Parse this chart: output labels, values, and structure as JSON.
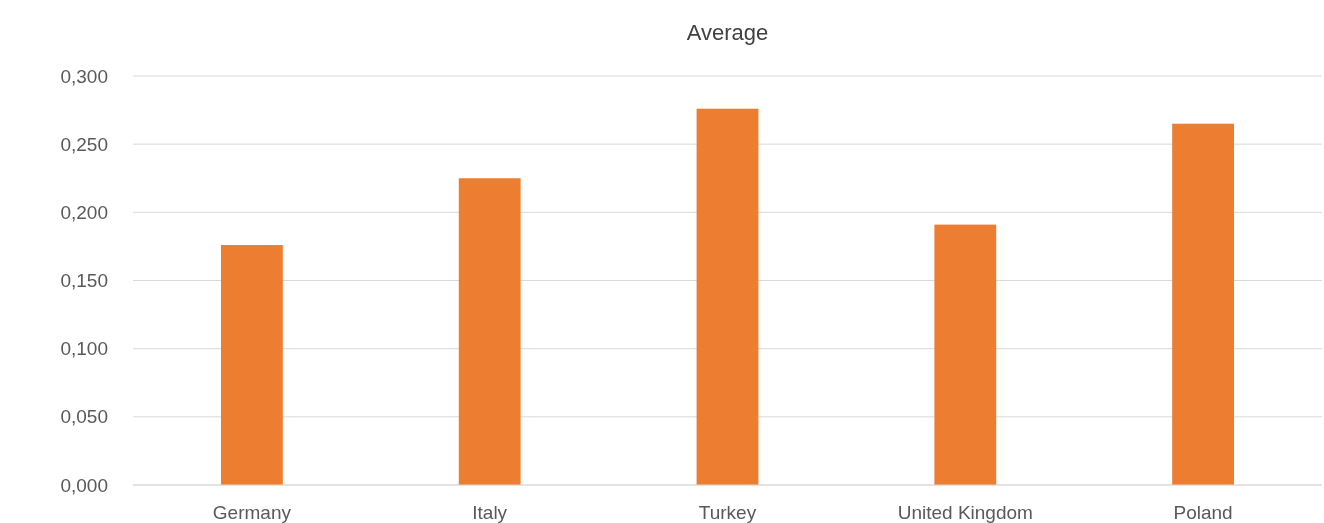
{
  "chart_data": {
    "type": "bar",
    "title": "Average",
    "categories": [
      "Germany",
      "Italy",
      "Turkey",
      "United Kingdom",
      "Poland"
    ],
    "values": [
      0.176,
      0.225,
      0.276,
      0.191,
      0.265
    ],
    "color": "#ed7d31",
    "ylim": [
      0,
      0.3
    ],
    "yticks": [
      {
        "value": 0,
        "label": "0,000"
      },
      {
        "value": 0.05,
        "label": "0,050"
      },
      {
        "value": 0.1,
        "label": "0,100"
      },
      {
        "value": 0.15,
        "label": "0,150"
      },
      {
        "value": 0.2,
        "label": "0,200"
      },
      {
        "value": 0.25,
        "label": "0,250"
      },
      {
        "value": 0.3,
        "label": "0,300"
      }
    ],
    "grid": "y"
  }
}
